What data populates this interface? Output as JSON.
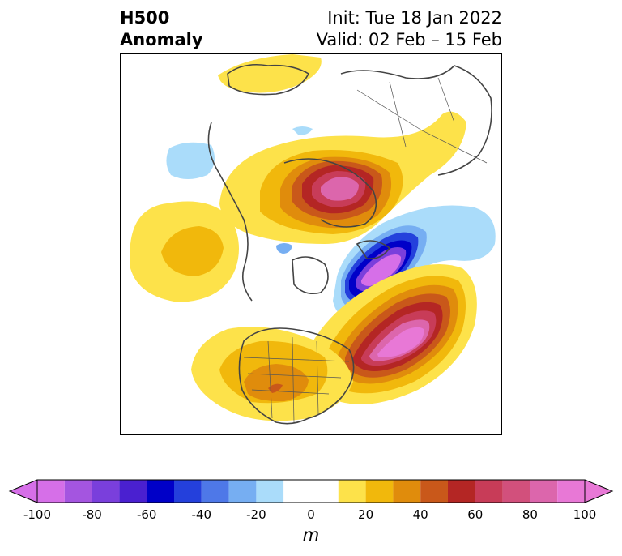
{
  "title": {
    "left_line1": "H500",
    "left_line2": "Anomaly",
    "right_line1": "Init: Tue 18 Jan 2022",
    "right_line2": "Valid: 02 Feb – 15 Feb"
  },
  "colorbar": {
    "unit_label": "m",
    "ticks": [
      "-100",
      "-80",
      "-60",
      "-40",
      "-20",
      "0",
      "20",
      "40",
      "60",
      "80",
      "100"
    ],
    "bin_edges": [
      -100,
      -90,
      -80,
      -70,
      -60,
      -50,
      -40,
      -30,
      -20,
      -10,
      10,
      20,
      30,
      40,
      50,
      60,
      70,
      80,
      90,
      100
    ],
    "colors": [
      "#d66fe8",
      "#a455e0",
      "#7a3fdc",
      "#4a20d0",
      "#0000c8",
      "#2440dc",
      "#4e78e8",
      "#76aef2",
      "#aadcfa",
      "#ffffff",
      "#fde24a",
      "#f1b80c",
      "#e08c0c",
      "#c9581a",
      "#b42624",
      "#c83c58",
      "#d2507c",
      "#dc66ac",
      "#e878d6"
    ],
    "extend_min_color": "#d66fe8",
    "extend_max_color": "#e878d6"
  }
}
